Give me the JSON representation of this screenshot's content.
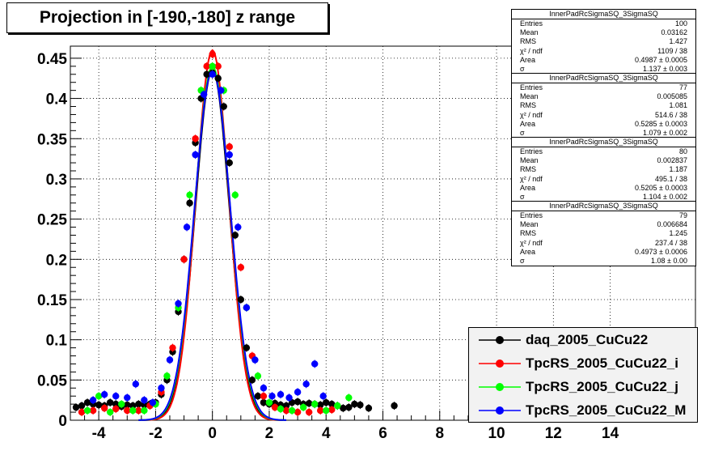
{
  "title": "Projection in [-190,-180] z range",
  "chart_data": {
    "type": "scatter",
    "title": "Projection in [-190,-180] z range",
    "xlabel": "",
    "ylabel": "",
    "xlim": [
      -5,
      17
    ],
    "ylim": [
      0,
      0.465
    ],
    "grid": true,
    "legend_position": "bottom-right",
    "x_ticks": [
      -4,
      -2,
      0,
      2,
      4,
      6,
      8,
      10,
      12,
      14
    ],
    "x_tick_labels": [
      "-4",
      "-2",
      "0",
      "2",
      "4",
      "6",
      "8",
      "10",
      "12",
      "14"
    ],
    "y_ticks": [
      0,
      0.05,
      0.1,
      0.15,
      0.2,
      0.25,
      0.3,
      0.35,
      0.4,
      0.45
    ],
    "y_tick_labels": [
      "0",
      "0.05",
      "0.1",
      "0.15",
      "0.2",
      "0.25",
      "0.3",
      "0.35",
      "0.4",
      "0.45"
    ],
    "series": [
      {
        "name": "daq_2005_CuCu22",
        "color": "#000000",
        "fit": {
          "amp": 0.435,
          "sigma": 0.6
        },
        "x": [
          -4.8,
          -4.6,
          -4.4,
          -4.2,
          -4.0,
          -3.8,
          -3.6,
          -3.4,
          -3.2,
          -3.0,
          -2.8,
          -2.6,
          -2.4,
          -2.2,
          -2.0,
          -1.8,
          -1.6,
          -1.4,
          -1.2,
          -1.0,
          -0.8,
          -0.6,
          -0.4,
          -0.2,
          0.0,
          0.2,
          0.4,
          0.6,
          0.8,
          1.0,
          1.2,
          1.4,
          1.6,
          1.8,
          2.0,
          2.2,
          2.4,
          2.6,
          2.8,
          3.0,
          3.2,
          3.4,
          3.6,
          3.8,
          4.0,
          4.2,
          4.4,
          4.6,
          4.8,
          5.0,
          5.2,
          5.5,
          6.4
        ],
        "y": [
          0.016,
          0.018,
          0.022,
          0.02,
          0.019,
          0.018,
          0.022,
          0.02,
          0.017,
          0.019,
          0.018,
          0.02,
          0.019,
          0.02,
          0.022,
          0.032,
          0.05,
          0.085,
          0.135,
          0.2,
          0.27,
          0.345,
          0.4,
          0.43,
          0.432,
          0.425,
          0.39,
          0.32,
          0.23,
          0.15,
          0.09,
          0.05,
          0.03,
          0.022,
          0.02,
          0.021,
          0.019,
          0.018,
          0.022,
          0.023,
          0.02,
          0.021,
          0.02,
          0.019,
          0.022,
          0.02,
          0.018,
          0.015,
          0.016,
          0.02,
          0.019,
          0.015,
          0.018
        ]
      },
      {
        "name": "TpcRS_2005_CuCu22_i",
        "color": "#ff0000",
        "fit": {
          "amp": 0.46,
          "sigma": 0.58
        },
        "x": [
          -4.6,
          -4.2,
          -3.8,
          -3.4,
          -3.0,
          -2.6,
          -2.2,
          -1.8,
          -1.4,
          -1.0,
          -0.6,
          -0.2,
          0.0,
          0.2,
          0.6,
          1.0,
          1.4,
          1.8,
          2.2,
          2.6,
          3.0,
          3.4,
          3.8,
          4.2
        ],
        "y": [
          0.01,
          0.012,
          0.015,
          0.014,
          0.012,
          0.012,
          0.018,
          0.035,
          0.09,
          0.2,
          0.35,
          0.44,
          0.455,
          0.44,
          0.34,
          0.19,
          0.08,
          0.03,
          0.016,
          0.012,
          0.01,
          0.01,
          0.012,
          0.013
        ]
      },
      {
        "name": "TpcRS_2005_CuCu22_j",
        "color": "#00ff00",
        "fit": {
          "amp": 0.44,
          "sigma": 0.62
        },
        "x": [
          -4.4,
          -4.0,
          -3.6,
          -3.2,
          -2.8,
          -2.4,
          -2.0,
          -1.6,
          -1.2,
          -0.8,
          -0.4,
          0.0,
          0.4,
          0.8,
          1.2,
          1.6,
          2.0,
          2.4,
          2.8,
          3.2,
          3.6,
          4.0,
          4.4,
          4.8
        ],
        "y": [
          0.012,
          0.03,
          0.01,
          0.02,
          0.012,
          0.012,
          0.02,
          0.055,
          0.14,
          0.28,
          0.41,
          0.44,
          0.41,
          0.28,
          0.14,
          0.055,
          0.022,
          0.014,
          0.012,
          0.016,
          0.02,
          0.012,
          0.018,
          0.028
        ]
      },
      {
        "name": "TpcRS_2005_CuCu22_M",
        "color": "#0000ff",
        "fit": {
          "amp": 0.435,
          "sigma": 0.63
        },
        "x": [
          -4.2,
          -3.8,
          -3.4,
          -3.0,
          -2.7,
          -2.4,
          -2.1,
          -1.8,
          -1.5,
          -1.2,
          -0.9,
          -0.6,
          -0.3,
          0.0,
          0.3,
          0.6,
          0.9,
          1.2,
          1.5,
          1.8,
          2.1,
          2.4,
          2.7,
          3.0,
          3.3,
          3.6,
          3.9
        ],
        "y": [
          0.025,
          0.032,
          0.03,
          0.028,
          0.045,
          0.025,
          0.022,
          0.04,
          0.075,
          0.145,
          0.24,
          0.33,
          0.405,
          0.43,
          0.41,
          0.33,
          0.24,
          0.14,
          0.075,
          0.04,
          0.03,
          0.032,
          0.028,
          0.035,
          0.045,
          0.07,
          0.03
        ]
      }
    ]
  },
  "stat_boxes": [
    {
      "title": "InnerPadRcSigmaSQ_3SigmaSQ",
      "rows": [
        {
          "k": "Entries",
          "v": "100"
        },
        {
          "k": "Mean",
          "v": "0.03162"
        },
        {
          "k": "RMS",
          "v": "1.427"
        },
        {
          "k": "χ² / ndf",
          "v": "1109 / 38"
        },
        {
          "k": "Area",
          "v": "0.4987 ± 0.0005"
        },
        {
          "k": "σ",
          "v": "1.137 ± 0.003"
        }
      ]
    },
    {
      "title": "InnerPadRcSigmaSQ_3SigmaSQ",
      "rows": [
        {
          "k": "Entries",
          "v": "77"
        },
        {
          "k": "Mean",
          "v": "0.005085"
        },
        {
          "k": "RMS",
          "v": "1.081"
        },
        {
          "k": "χ² / ndf",
          "v": "514.6 / 38"
        },
        {
          "k": "Area",
          "v": "0.5285 ± 0.0003"
        },
        {
          "k": "σ",
          "v": "1.079 ± 0.002"
        }
      ]
    },
    {
      "title": "InnerPadRcSigmaSQ_3SigmaSQ",
      "rows": [
        {
          "k": "Entries",
          "v": "80"
        },
        {
          "k": "Mean",
          "v": "0.002837"
        },
        {
          "k": "RMS",
          "v": "1.187"
        },
        {
          "k": "χ² / ndf",
          "v": "495.1 / 38"
        },
        {
          "k": "Area",
          "v": "0.5205 ± 0.0003"
        },
        {
          "k": "σ",
          "v": "1.104 ± 0.002"
        }
      ]
    },
    {
      "title": "InnerPadRcSigmaSQ_3SigmaSQ",
      "rows": [
        {
          "k": "Entries",
          "v": "79"
        },
        {
          "k": "Mean",
          "v": "0.006684"
        },
        {
          "k": "RMS",
          "v": "1.245"
        },
        {
          "k": "χ² / ndf",
          "v": "237.4 / 38"
        },
        {
          "k": "Area",
          "v": "0.4973 ± 0.0006"
        },
        {
          "k": "σ",
          "v": "1.08 ± 0.00"
        }
      ]
    }
  ]
}
